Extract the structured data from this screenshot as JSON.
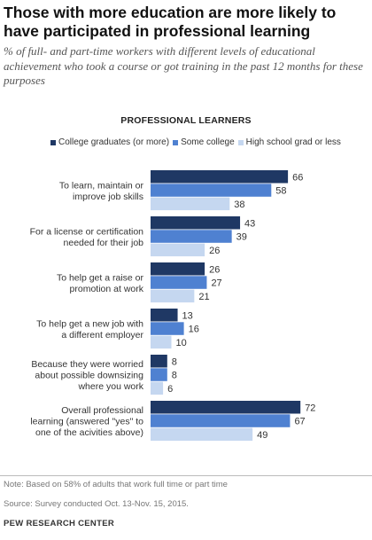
{
  "title": "Those with more education are more likely to have participated in professional learning",
  "subtitle": "% of full- and part-time workers with different levels of educational achievement who took a course or got training in the past 12 months for these purposes",
  "note": "Note: Based on 58% of adults that work full time or part time",
  "source": "Source: Survey conducted Oct. 13-Nov. 15, 2015.",
  "footer": "PEW RESEARCH CENTER",
  "chart_data": {
    "type": "bar",
    "orientation": "horizontal",
    "title": "PROFESSIONAL LEARNERS",
    "categories": [
      [
        "To learn, maintain or",
        "improve job skills"
      ],
      [
        "For a license or certification",
        "needed for their job"
      ],
      [
        "To help get a raise or",
        "promotion at work"
      ],
      [
        "To help get a new job with",
        "a different employer"
      ],
      [
        "Because they were worried",
        "about possible downsizing",
        "where you work"
      ],
      [
        "Overall professional",
        "learning (answered \"yes\" to",
        "one of the acivities above)"
      ]
    ],
    "series": [
      {
        "name": "College graduates (or more)",
        "color": "#1f3864",
        "values": [
          66,
          43,
          26,
          13,
          8,
          72
        ]
      },
      {
        "name": "Some college",
        "color": "#4f81d1",
        "values": [
          58,
          39,
          27,
          16,
          8,
          67
        ]
      },
      {
        "name": "High school grad or less",
        "color": "#c5d7f0",
        "values": [
          38,
          26,
          21,
          10,
          6,
          49
        ]
      }
    ],
    "xlim": [
      0,
      100
    ],
    "legend": "top",
    "grid": false
  }
}
